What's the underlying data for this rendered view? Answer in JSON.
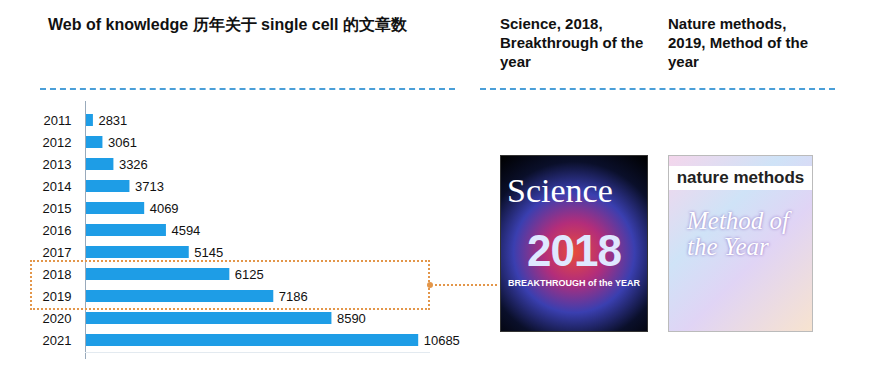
{
  "chart_data": {
    "type": "bar",
    "orientation": "horizontal",
    "title": "Web of knowledge 历年关于 single cell 的文章数",
    "categories": [
      "2011",
      "2012",
      "2013",
      "2014",
      "2015",
      "2016",
      "2017",
      "2018",
      "2019",
      "2020",
      "2021"
    ],
    "values": [
      2831,
      3061,
      3326,
      3713,
      4069,
      4594,
      5145,
      6125,
      7186,
      8590,
      10685
    ],
    "color": "#1e9de6",
    "xlim": [
      2640,
      10970
    ],
    "xticks": [],
    "tick_labels": "y",
    "data_labels": true,
    "annotations": [
      {
        "text": "Science, 2018, Breakthrough of the year",
        "image_texts": [
          "Science",
          "2018",
          "BREAKTHROUGH of the YEAR"
        ],
        "target": [
          "2018",
          "2019"
        ]
      },
      {
        "text": "Nature methods, 2019, Method of the year",
        "image_texts": [
          "nature methods",
          "Method of the Year"
        ]
      }
    ]
  }
}
